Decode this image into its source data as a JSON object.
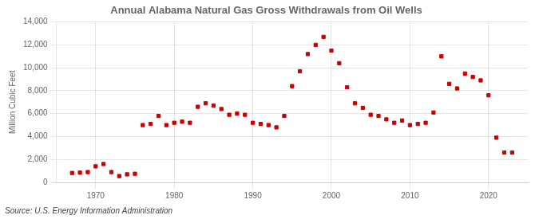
{
  "chart_data": {
    "type": "scatter",
    "title": "Annual Alabama Natural Gas Gross Withdrawals from Oil Wells",
    "ylabel": "Million Cubic Feet",
    "annotation": "Source: U.S. Energy Information Administration",
    "x": [
      1967,
      1968,
      1969,
      1970,
      1971,
      1972,
      1973,
      1974,
      1975,
      1976,
      1977,
      1978,
      1979,
      1980,
      1981,
      1982,
      1983,
      1984,
      1985,
      1986,
      1987,
      1988,
      1989,
      1990,
      1991,
      1992,
      1993,
      1994,
      1995,
      1996,
      1997,
      1998,
      1999,
      2000,
      2001,
      2002,
      2003,
      2004,
      2005,
      2006,
      2007,
      2008,
      2009,
      2010,
      2011,
      2012,
      2013,
      2014,
      2015,
      2016,
      2017,
      2018,
      2019,
      2020,
      2021,
      2022,
      2023
    ],
    "values": [
      820,
      850,
      900,
      1400,
      1600,
      900,
      550,
      700,
      750,
      5000,
      5100,
      5800,
      5000,
      5200,
      5300,
      5200,
      6600,
      6900,
      6700,
      6400,
      5900,
      6000,
      5900,
      5200,
      5100,
      5000,
      4800,
      5800,
      8400,
      9700,
      11200,
      12000,
      12700,
      11500,
      10400,
      8300,
      6900,
      6500,
      5900,
      5800,
      5500,
      5200,
      5400,
      5000,
      5100,
      5200,
      6100,
      11000,
      8600,
      8200,
      9500,
      9200,
      8900,
      7600,
      3900,
      2600,
      2600
    ],
    "color": "#cc0000",
    "marker": "square",
    "xlim": [
      1965,
      2025
    ],
    "xticks": [
      1970,
      1980,
      1990,
      2000,
      2010,
      2020
    ],
    "ylim": [
      0,
      14000
    ],
    "yticks": [
      0,
      {
        "value": 2000,
        "label": "2,000"
      },
      {
        "value": 4000,
        "label": "4,000"
      },
      {
        "value": 6000,
        "label": "6,000"
      },
      {
        "value": 8000,
        "label": "8,000"
      },
      {
        "value": 10000,
        "label": "10,000"
      },
      {
        "value": 12000,
        "label": "12,000"
      },
      {
        "value": 14000,
        "label": "14,000"
      }
    ],
    "grid": true
  }
}
